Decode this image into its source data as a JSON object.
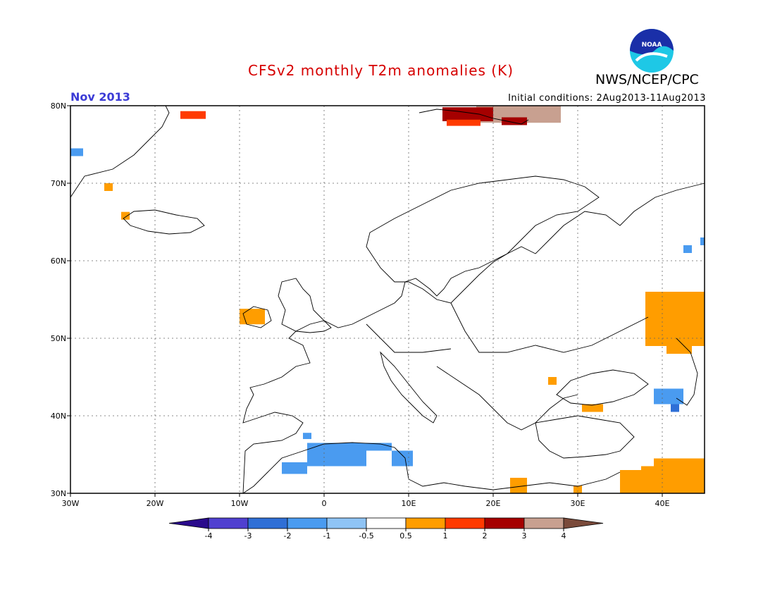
{
  "header": {
    "title": "CFSv2 monthly T2m anomalies (K)",
    "organization": "NWS/NCEP/CPC",
    "month": "Nov 2013",
    "initial_conditions": "Initial conditions: 2Aug2013-11Aug2013",
    "logo_text": "NOAA"
  },
  "axes": {
    "lon_labels": [
      "30W",
      "20W",
      "10W",
      "0",
      "10E",
      "20E",
      "30E",
      "40E"
    ],
    "lon_values": [
      -30,
      -20,
      -10,
      0,
      10,
      20,
      30,
      40
    ],
    "lat_labels": [
      "30N",
      "40N",
      "50N",
      "60N",
      "70N",
      "80N"
    ],
    "lat_values": [
      30,
      40,
      50,
      60,
      70,
      80
    ],
    "lon_range": [
      -30,
      45
    ],
    "lat_range": [
      30,
      80
    ],
    "grid": "dotted"
  },
  "colorbar": {
    "levels": [
      "-4",
      "-3",
      "-2",
      "-1",
      "-0.5",
      "0.5",
      "1",
      "2",
      "3",
      "4"
    ],
    "colors": [
      "#2a0a8c",
      "#5040d0",
      "#2f6fd6",
      "#4a9bf0",
      "#8fc4f5",
      "#ffffff",
      "#ff9d00",
      "#ff3a00",
      "#a50000",
      "#c8a090",
      "#7a4a3a"
    ]
  },
  "anomalies": [
    {
      "name": "svalbard-west",
      "lon": [
        -17,
        -14
      ],
      "lat": [
        78.3,
        79.3
      ],
      "level": 2
    },
    {
      "name": "svalbard-center",
      "lon": [
        14,
        20
      ],
      "lat": [
        78,
        79.8
      ],
      "level": 3
    },
    {
      "name": "svalbard-center-south",
      "lon": [
        14.5,
        18.5
      ],
      "lat": [
        77.4,
        78.2
      ],
      "level": 2
    },
    {
      "name": "svalbard-east",
      "lon": [
        21,
        24
      ],
      "lat": [
        77.5,
        78.5
      ],
      "level": 3
    },
    {
      "name": "svalbard-brown",
      "lon": [
        18,
        28
      ],
      "lat": [
        77.8,
        80
      ],
      "level": 4
    },
    {
      "name": "greenland-blue",
      "lon": [
        -30,
        -28.5
      ],
      "lat": [
        73.5,
        74.5
      ],
      "level": -1
    },
    {
      "name": "greenland-orange",
      "lon": [
        -26,
        -25
      ],
      "lat": [
        69,
        70
      ],
      "level": 1
    },
    {
      "name": "iceland-orange",
      "lon": [
        -24,
        -23
      ],
      "lat": [
        65.3,
        66.3
      ],
      "level": 1
    },
    {
      "name": "ireland-orange",
      "lon": [
        -10,
        -7
      ],
      "lat": [
        51.8,
        53.8
      ],
      "level": 1
    },
    {
      "name": "russia-east-orange",
      "lon": [
        38,
        45
      ],
      "lat": [
        49,
        56
      ],
      "level": 1
    },
    {
      "name": "russia-east-orange-2",
      "lon": [
        40.5,
        43.5
      ],
      "lat": [
        48,
        54
      ],
      "level": 1
    },
    {
      "name": "black-sea-orange",
      "lon": [
        26.5,
        27.5
      ],
      "lat": [
        44,
        45
      ],
      "level": 1
    },
    {
      "name": "turkey-orange",
      "lon": [
        30.5,
        33
      ],
      "lat": [
        40.5,
        41.5
      ],
      "level": 1
    },
    {
      "name": "caucasus-blue",
      "lon": [
        39,
        42.5
      ],
      "lat": [
        41.5,
        43.5
      ],
      "level": -1
    },
    {
      "name": "caucasus-blue-2",
      "lon": [
        41,
        42
      ],
      "lat": [
        40.5,
        41.5
      ],
      "level": -2
    },
    {
      "name": "urals-blue",
      "lon": [
        42.5,
        43.5
      ],
      "lat": [
        61,
        62
      ],
      "level": -1
    },
    {
      "name": "urals-blue-2",
      "lon": [
        44.5,
        45
      ],
      "lat": [
        62,
        63
      ],
      "level": -1
    },
    {
      "name": "n-africa-blue",
      "lon": [
        -2,
        5
      ],
      "lat": [
        33.5,
        36.5
      ],
      "level": -1
    },
    {
      "name": "n-africa-blue-2",
      "lon": [
        0,
        8
      ],
      "lat": [
        35.5,
        36.5
      ],
      "level": -1
    },
    {
      "name": "n-africa-blue-3",
      "lon": [
        -5,
        -2
      ],
      "lat": [
        32.5,
        34
      ],
      "level": -1
    },
    {
      "name": "tunisia-blue",
      "lon": [
        8,
        10.5
      ],
      "lat": [
        33.5,
        35.5
      ],
      "level": -1
    },
    {
      "name": "spain-blue",
      "lon": [
        -2.5,
        -1.5
      ],
      "lat": [
        37,
        37.8
      ],
      "level": -1
    },
    {
      "name": "greece-orange",
      "lon": [
        22,
        24
      ],
      "lat": [
        30,
        32
      ],
      "level": 1
    },
    {
      "name": "egypt-orange",
      "lon": [
        29.5,
        30.5
      ],
      "lat": [
        30,
        31
      ],
      "level": 1
    },
    {
      "name": "middle-east-orange",
      "lon": [
        35,
        45
      ],
      "lat": [
        30,
        33
      ],
      "level": 1
    },
    {
      "name": "middle-east-orange-2",
      "lon": [
        39,
        45
      ],
      "lat": [
        31,
        34.5
      ],
      "level": 1
    },
    {
      "name": "middle-east-orange-3",
      "lon": [
        37.5,
        42
      ],
      "lat": [
        30,
        33.5
      ],
      "level": 1
    }
  ]
}
